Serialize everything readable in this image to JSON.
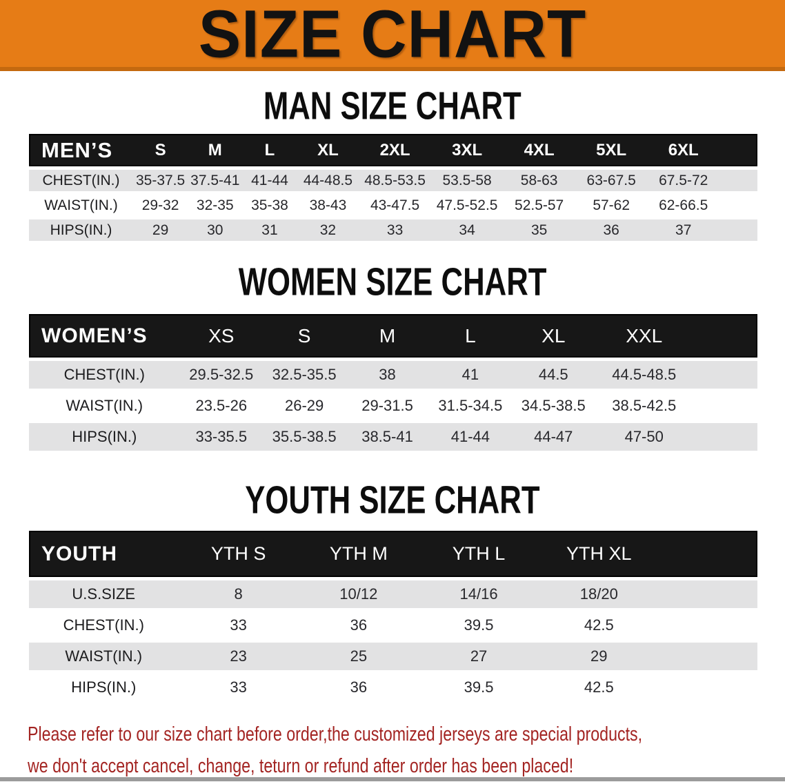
{
  "banner": {
    "title": "SIZE CHART",
    "bg_color": "#e67c16",
    "edge_color": "#c4690f"
  },
  "colors": {
    "header_bar": "#171717",
    "stripe_gray": "#e2e2e3",
    "footer_red": "#a32422"
  },
  "sections": [
    {
      "heading": "MAN SIZE CHART",
      "table": {
        "header_label": "MEN’S",
        "columns": [
          "S",
          "M",
          "L",
          "XL",
          "2XL",
          "3XL",
          "4XL",
          "5XL",
          "6XL"
        ],
        "rows": [
          {
            "label": "CHEST(IN.)",
            "values": [
              "35-37.5",
              "37.5-41",
              "41-44",
              "44-48.5",
              "48.5-53.5",
              "53.5-58",
              "58-63",
              "63-67.5",
              "67.5-72"
            ]
          },
          {
            "label": "WAIST(IN.)",
            "values": [
              "29-32",
              "32-35",
              "35-38",
              "38-43",
              "43-47.5",
              "47.5-52.5",
              "52.5-57",
              "57-62",
              "62-66.5"
            ]
          },
          {
            "label": "HIPS(IN.)",
            "values": [
              "29",
              "30",
              "31",
              "32",
              "33",
              "34",
              "35",
              "36",
              "37"
            ]
          }
        ]
      }
    },
    {
      "heading": "WOMEN SIZE CHART",
      "table": {
        "header_label": "WOMEN’S",
        "columns": [
          "XS",
          "S",
          "M",
          "L",
          "XL",
          "XXL"
        ],
        "rows": [
          {
            "label": "CHEST(IN.)",
            "values": [
              "29.5-32.5",
              "32.5-35.5",
              "38",
              "41",
              "44.5",
              "44.5-48.5"
            ]
          },
          {
            "label": "WAIST(IN.)",
            "values": [
              "23.5-26",
              "26-29",
              "29-31.5",
              "31.5-34.5",
              "34.5-38.5",
              "38.5-42.5"
            ]
          },
          {
            "label": "HIPS(IN.)",
            "values": [
              "33-35.5",
              "35.5-38.5",
              "38.5-41",
              "41-44",
              "44-47",
              "47-50"
            ]
          }
        ]
      }
    },
    {
      "heading": "YOUTH SIZE CHART",
      "table": {
        "header_label": "YOUTH",
        "columns": [
          "YTH S",
          "YTH M",
          "YTH L",
          "YTH XL"
        ],
        "rows": [
          {
            "label": "U.S.SIZE",
            "values": [
              "8",
              "10/12",
              "14/16",
              "18/20"
            ]
          },
          {
            "label": "CHEST(IN.)",
            "values": [
              "33",
              "36",
              "39.5",
              "42.5"
            ]
          },
          {
            "label": "WAIST(IN.)",
            "values": [
              "23",
              "25",
              "27",
              "29"
            ]
          },
          {
            "label": "HIPS(IN.)",
            "values": [
              "33",
              "36",
              "39.5",
              "42.5"
            ]
          }
        ]
      }
    }
  ],
  "footer": {
    "line1": "Please refer to our size chart before order,the customized jerseys are special products,",
    "line2": "we don't accept cancel, change, teturn or refund after order has been placed!"
  }
}
